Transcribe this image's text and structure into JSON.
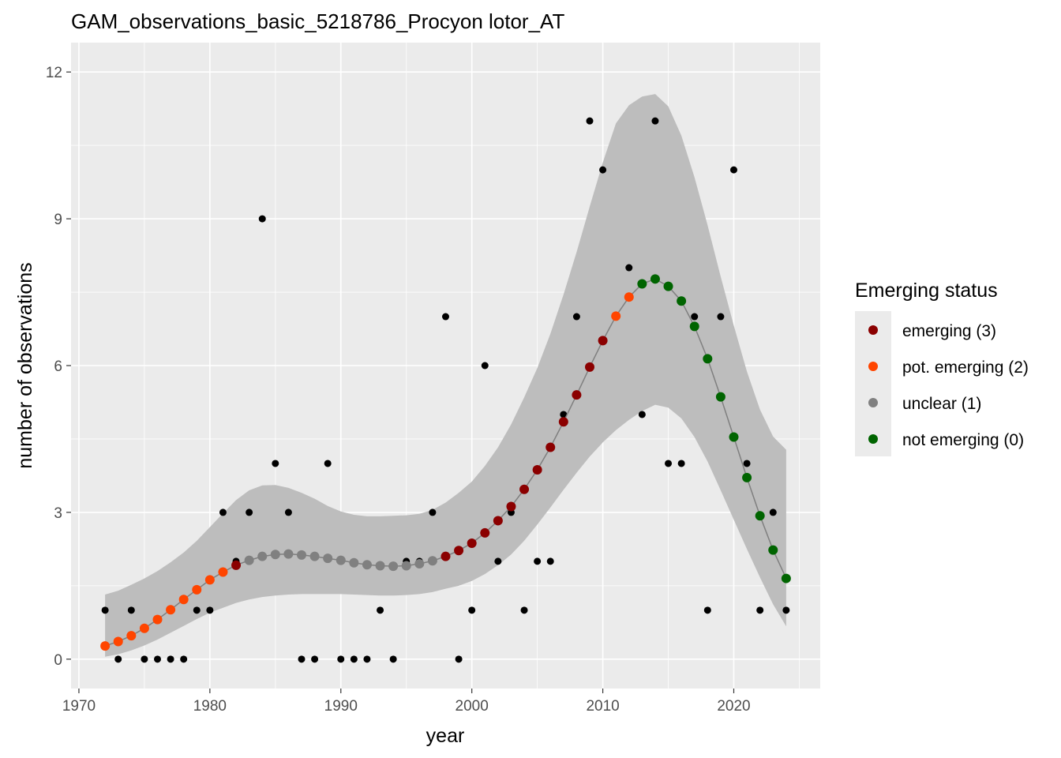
{
  "chart_data": {
    "type": "scatter",
    "title": "GAM_observations_basic_5218786_Procyon lotor_AT",
    "xlabel": "year",
    "ylabel": "number of observations",
    "xlim": [
      1969.4,
      2026.6
    ],
    "ylim": [
      -0.6,
      12.6
    ],
    "x_ticks": [
      1970,
      1980,
      1990,
      2000,
      2010,
      2020
    ],
    "y_ticks": [
      0,
      3,
      6,
      9,
      12
    ],
    "x_tick_labels": [
      "1970",
      "1980",
      "1990",
      "2000",
      "2010",
      "2020"
    ],
    "y_tick_labels": [
      "0",
      "3",
      "6",
      "9",
      "12"
    ],
    "grid": true,
    "legend_position": "right",
    "legend": {
      "title": "Emerging status",
      "entries": [
        {
          "label": "emerging (3)",
          "color": "#8b0000"
        },
        {
          "label": "pot. emerging (2)",
          "color": "#ff4500"
        },
        {
          "label": "unclear (1)",
          "color": "#808080"
        },
        {
          "label": "not emerging (0)",
          "color": "#006400"
        }
      ]
    },
    "observations": {
      "x": [
        1972,
        1973,
        1974,
        1975,
        1976,
        1977,
        1978,
        1979,
        1980,
        1981,
        1982,
        1983,
        1984,
        1985,
        1986,
        1987,
        1988,
        1989,
        1990,
        1991,
        1992,
        1993,
        1994,
        1995,
        1996,
        1997,
        1998,
        1999,
        2000,
        2001,
        2002,
        2003,
        2004,
        2005,
        2006,
        2007,
        2008,
        2009,
        2010,
        2011,
        2012,
        2013,
        2014,
        2015,
        2016,
        2017,
        2018,
        2019,
        2020,
        2021,
        2022,
        2023,
        2024
      ],
      "y": [
        1,
        0,
        1,
        0,
        0,
        0,
        0,
        1,
        1,
        3,
        2,
        3,
        9,
        4,
        3,
        0,
        0,
        4,
        0,
        0,
        0,
        1,
        0,
        2,
        2,
        3,
        7,
        0,
        1,
        6,
        2,
        3,
        1,
        2,
        2,
        5,
        7,
        11,
        10,
        7,
        8,
        5,
        11,
        4,
        4,
        7,
        1,
        7,
        10,
        4,
        1,
        3,
        1
      ]
    },
    "fit": {
      "x": [
        1972,
        1973,
        1974,
        1975,
        1976,
        1977,
        1978,
        1979,
        1980,
        1981,
        1982,
        1983,
        1984,
        1985,
        1986,
        1987,
        1988,
        1989,
        1990,
        1991,
        1992,
        1993,
        1994,
        1995,
        1996,
        1997,
        1998,
        1999,
        2000,
        2001,
        2002,
        2003,
        2004,
        2005,
        2006,
        2007,
        2008,
        2009,
        2010,
        2011,
        2012,
        2013,
        2014,
        2015,
        2016,
        2017,
        2018,
        2019,
        2020,
        2021,
        2022,
        2023,
        2024
      ],
      "y": [
        0.27,
        0.36,
        0.48,
        0.63,
        0.81,
        1.01,
        1.22,
        1.42,
        1.62,
        1.78,
        1.92,
        2.02,
        2.1,
        2.14,
        2.15,
        2.13,
        2.1,
        2.06,
        2.02,
        1.97,
        1.93,
        1.91,
        1.9,
        1.91,
        1.95,
        2.01,
        2.1,
        2.22,
        2.37,
        2.58,
        2.83,
        3.12,
        3.47,
        3.87,
        4.33,
        4.85,
        5.4,
        5.97,
        6.51,
        7.01,
        7.4,
        7.67,
        7.77,
        7.62,
        7.32,
        6.8,
        6.14,
        5.36,
        4.54,
        3.71,
        2.93,
        2.23,
        1.65
      ],
      "status": [
        2,
        2,
        2,
        2,
        2,
        2,
        2,
        2,
        2,
        2,
        3,
        1,
        1,
        1,
        1,
        1,
        1,
        1,
        1,
        1,
        1,
        1,
        1,
        1,
        1,
        1,
        3,
        3,
        3,
        3,
        3,
        3,
        3,
        3,
        3,
        3,
        3,
        3,
        3,
        2,
        2,
        0,
        0,
        0,
        0,
        0,
        0,
        0,
        0,
        0,
        0,
        0,
        0
      ],
      "lower": [
        0.05,
        0.1,
        0.18,
        0.28,
        0.4,
        0.54,
        0.68,
        0.82,
        0.95,
        1.05,
        1.15,
        1.22,
        1.27,
        1.3,
        1.32,
        1.33,
        1.33,
        1.33,
        1.33,
        1.32,
        1.31,
        1.3,
        1.3,
        1.31,
        1.33,
        1.37,
        1.44,
        1.5,
        1.6,
        1.74,
        1.92,
        2.14,
        2.42,
        2.75,
        3.1,
        3.46,
        3.81,
        4.14,
        4.43,
        4.68,
        4.89,
        5.07,
        5.2,
        5.14,
        4.92,
        4.54,
        4.04,
        3.45,
        2.85,
        2.25,
        1.67,
        1.12,
        0.67
      ],
      "upper": [
        1.32,
        1.4,
        1.52,
        1.65,
        1.8,
        1.98,
        2.18,
        2.42,
        2.7,
        2.98,
        3.25,
        3.45,
        3.55,
        3.56,
        3.5,
        3.4,
        3.28,
        3.13,
        3.02,
        2.95,
        2.92,
        2.92,
        2.93,
        2.94,
        2.97,
        3.05,
        3.2,
        3.4,
        3.63,
        3.95,
        4.33,
        4.8,
        5.35,
        5.95,
        6.65,
        7.45,
        8.32,
        9.25,
        10.15,
        10.95,
        11.32,
        11.5,
        11.55,
        11.3,
        10.7,
        9.85,
        8.87,
        7.82,
        6.82,
        5.88,
        5.1,
        4.55,
        4.28
      ]
    }
  }
}
